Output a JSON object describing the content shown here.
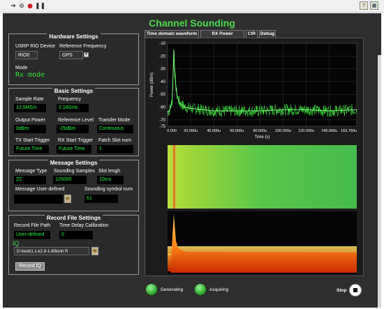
{
  "app": {
    "title": "Channel Sounding"
  },
  "hardware": {
    "title": "Hardware Settings",
    "device_label": "USRP RIO Device",
    "device_value": "RIO0",
    "ref_freq_label": "Reference Frequency",
    "ref_freq_value": "GPS",
    "mode_label": "Mode",
    "mode_value": "Rx mode"
  },
  "basic": {
    "title": "Basic Settings",
    "sample_rate_label": "Sample Rate",
    "sample_rate_value": "12.5MS/s",
    "frequency_label": "Frequency",
    "frequency_value": "2.16GHz",
    "output_power_label": "Output Power",
    "output_power_value": "0dBm",
    "ref_level_label": "Reference Level",
    "ref_level_value": "-25dBm",
    "transfer_mode_label": "Transfer Mode",
    "transfer_mode_value": "Continuous",
    "tx_trigger_label": "TX Start Trigger",
    "tx_trigger_value": "Future Time",
    "rx_trigger_label": "RX Start Trigger",
    "rx_trigger_value": "Future Time",
    "fatch_slot_label": "Fatch Slot num",
    "fatch_slot_value": "1"
  },
  "message": {
    "title": "Message Settings",
    "type_label": "Message Type",
    "type_value": "ZC",
    "samples_label": "Sounding Samples",
    "samples_value": "125000",
    "slot_label": "Slot lengh",
    "slot_value": "10ms",
    "user_defined_label": "Message User-defined",
    "user_defined_value": "",
    "symbol_num_label": "Sounding symbol num",
    "symbol_num_value": "61"
  },
  "record": {
    "title": "Record File Settings",
    "path_label": "Record File Path",
    "path_value": "User-defined",
    "delay_label": "Time Delay Calibration",
    "delay_value": "0",
    "iq_label": "IQ",
    "iq_path": "D:\\testk1.1-k2.9-1-80kmh R",
    "record_button": "Record IQ"
  },
  "tabs": [
    {
      "label": "Time domain waveform"
    },
    {
      "label": "RX Power Spectrum"
    },
    {
      "label": "CIR"
    },
    {
      "label": "Debug"
    }
  ],
  "status": {
    "generating_label": "Generating",
    "acquiring_label": "Acquiring",
    "stop_label": "Stop"
  },
  "colors": {
    "accent": "#4cd94c",
    "indicator_text": "#22ff44",
    "trace": "#44ff44"
  },
  "chart_data": {
    "type": "line",
    "xlabel": "Time (s)",
    "ylabel": "Power (dBm)",
    "ylim": [
      -75,
      -10
    ],
    "xlim": [
      0,
      0.00016376
    ],
    "yticks": [
      -10,
      -20,
      -30,
      -40,
      -50,
      -60,
      -70,
      -75
    ],
    "xtick_labels": [
      "0.000",
      "20.000u",
      "40.000u",
      "60.000u",
      "80.000u",
      "100.000u",
      "120.000u",
      "140.000u",
      "163.760u"
    ],
    "xtick_values": [
      0,
      2e-05,
      4e-05,
      6e-05,
      8e-05,
      0.0001,
      0.00012,
      0.00014,
      0.00016376
    ],
    "series": [
      {
        "x": [
          0,
          2e-06,
          4e-06,
          4.8e-06,
          5.5e-06,
          6e-06,
          7e-06,
          8e-06,
          1e-05,
          1.2e-05,
          1.5e-05,
          2e-05,
          3e-05,
          4e-05,
          6e-05,
          8e-05,
          0.0001,
          0.00012,
          0.00014,
          0.00016376
        ],
        "y": [
          -64,
          -62,
          -55,
          -35,
          -15,
          -28,
          -42,
          -50,
          -56,
          -58,
          -60,
          -61,
          -62,
          -63,
          -63,
          -63,
          -62,
          -62,
          -63,
          -62
        ]
      }
    ],
    "grid": true
  }
}
